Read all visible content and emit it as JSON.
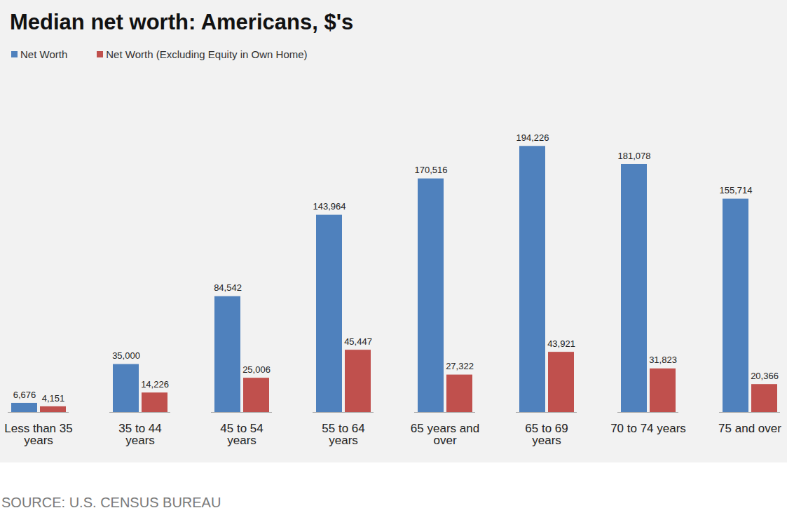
{
  "chart_data": {
    "type": "bar",
    "title": "Median net worth: Americans, $'s",
    "source": "SOURCE: U.S. CENSUS BUREAU",
    "categories": [
      "Less than 35 years",
      "35 to 44 years",
      "45 to 54 years",
      "55 to 64 years",
      "65 years and over",
      "65 to 69 years",
      "70 to 74 years",
      "75 and over"
    ],
    "series": [
      {
        "name": "Net Worth",
        "color": "#4f81bd",
        "values": [
          6676,
          35000,
          84542,
          143964,
          170516,
          194226,
          181078,
          155714
        ],
        "value_labels": [
          "6,676",
          "35,000",
          "84,542",
          "143,964",
          "170,516",
          "194,226",
          "181,078",
          "155,714"
        ]
      },
      {
        "name": "Net Worth (Excluding Equity in Own Home)",
        "color": "#c0504d",
        "values": [
          4151,
          14226,
          25006,
          45447,
          27322,
          43921,
          31823,
          20366
        ],
        "value_labels": [
          "4,151",
          "14,226",
          "25,006",
          "45,447",
          "27,322",
          "43,921",
          "31,823",
          "20,366"
        ]
      }
    ],
    "ylim": [
      0,
      200000
    ],
    "grid": false,
    "legend": "top-left",
    "data_labels": true,
    "tick_labels": "x"
  }
}
